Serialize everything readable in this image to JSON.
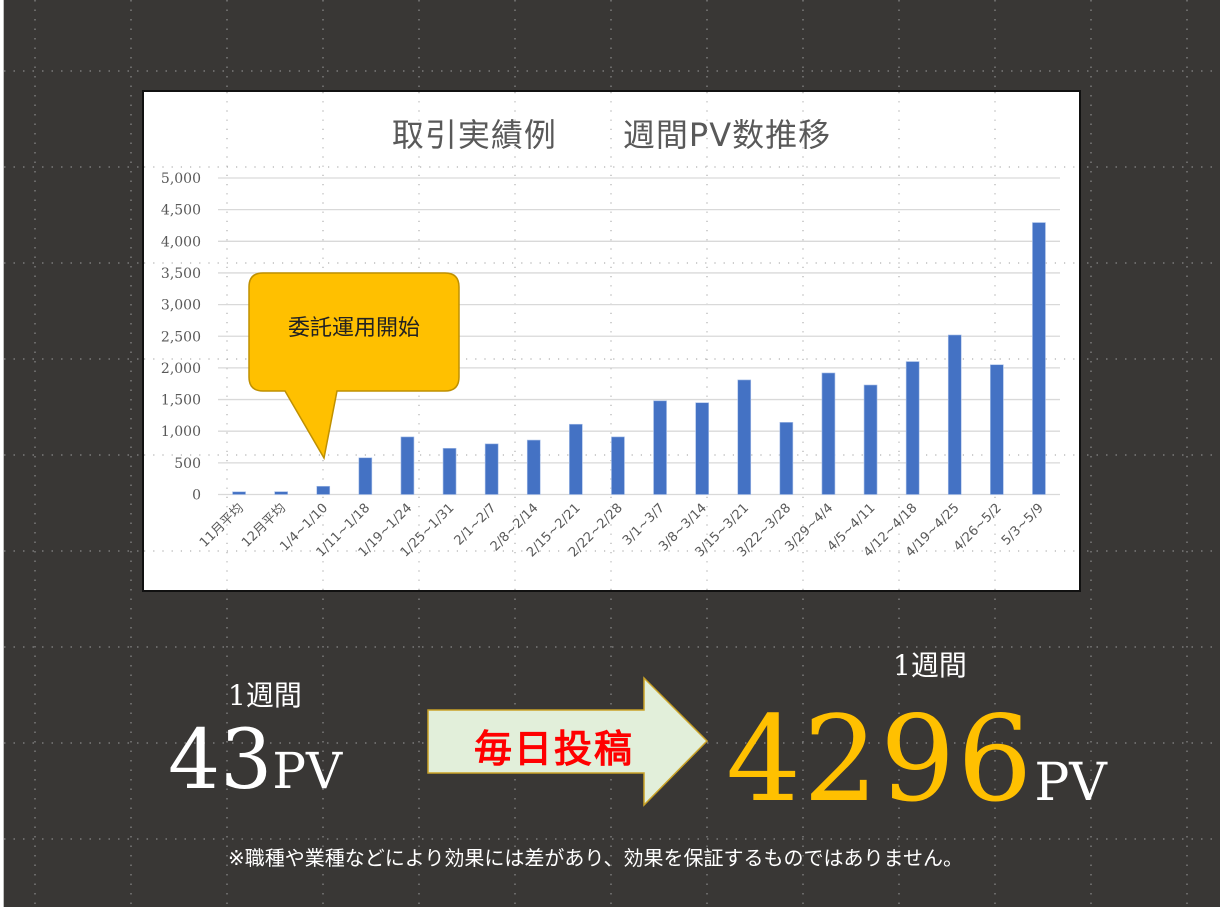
{
  "chart_data": {
    "type": "bar",
    "title": "取引実績例　　週間PV数推移",
    "xlabel": "",
    "ylabel": "",
    "ylim": [
      0,
      5000
    ],
    "yticks": [
      0,
      500,
      1000,
      1500,
      2000,
      2500,
      3000,
      3500,
      4000,
      4500,
      5000
    ],
    "ytick_labels": [
      "0",
      "500",
      "1,000",
      "1,500",
      "2,000",
      "2,500",
      "3,000",
      "3,500",
      "4,000",
      "4,500",
      "5,000"
    ],
    "grid": true,
    "legend": null,
    "bar_color": "#4472c4",
    "categories": [
      "11月平均",
      "12月平均",
      "1/4~1/10",
      "1/11~1/18",
      "1/19~1/24",
      "1/25~1/31",
      "2/1~2/7",
      "2/8~2/14",
      "2/15~2/21",
      "2/22~2/28",
      "3/1~3/7",
      "3/8~3/14",
      "3/15~3/21",
      "3/22~3/28",
      "3/29~4/4",
      "4/5~4/11",
      "4/12~4/18",
      "4/19~4/25",
      "4/26~5/2",
      "5/3~5/9"
    ],
    "values": [
      43,
      45,
      130,
      580,
      910,
      730,
      800,
      860,
      1110,
      910,
      1480,
      1450,
      1810,
      1140,
      1920,
      1730,
      2100,
      2520,
      2050,
      4296
    ],
    "annotations": [
      {
        "text": "委託運用開始",
        "points_to": "1/4~1/10",
        "shape": "speech-callout",
        "fill": "#ffc000"
      }
    ]
  },
  "chart": {
    "title": "取引実績例　　週間PV数推移",
    "callout": "委託運用開始"
  },
  "summary": {
    "before": {
      "caption": "1週間",
      "value": "43",
      "unit": "PV"
    },
    "action": {
      "label": "毎日投稿"
    },
    "after": {
      "caption": "1週間",
      "value": "4296",
      "unit": "PV"
    }
  },
  "disclaimer": "※職種や業種などにより効果には差があり、効果を保証するものではありません。",
  "colors": {
    "background": "#393735",
    "bar": "#4472c4",
    "callout": "#ffc000",
    "highlight_value": "#ffc000",
    "arrow_fill": "#e2efda",
    "arrow_text": "#ff0000"
  }
}
